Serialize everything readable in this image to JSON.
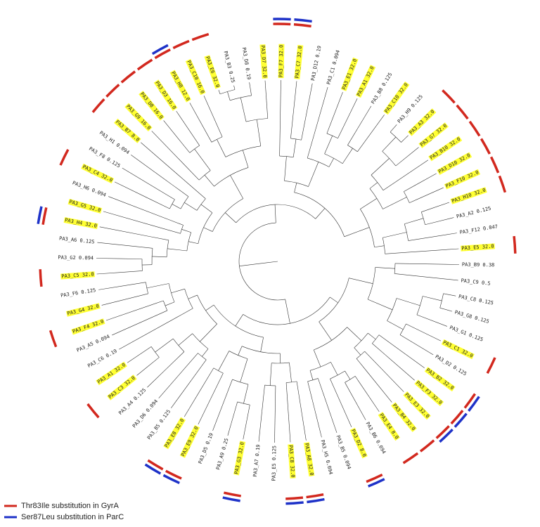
{
  "legend": [
    {
      "label": "Thr83Ile substitution in GyrA",
      "color": "#d2281e"
    },
    {
      "label": "Ser87Leu substitution in ParC",
      "color": "#1e32c8"
    }
  ],
  "leaves": [
    {
      "label": "PA3_B9 0.38",
      "highlight": false,
      "gyrA": false,
      "parC": false
    },
    {
      "label": "PA3_C9 0.5",
      "highlight": false,
      "gyrA": false,
      "parC": false
    },
    {
      "label": "PA3_C8 0.125",
      "highlight": false,
      "gyrA": false,
      "parC": false
    },
    {
      "label": "PA3_G8 0.125",
      "highlight": false,
      "gyrA": false,
      "parC": false
    },
    {
      "label": "PA3_G1 0.125",
      "highlight": false,
      "gyrA": false,
      "parC": false
    },
    {
      "label": "PA3_C1 32.0",
      "highlight": true,
      "gyrA": true,
      "parC": false
    },
    {
      "label": "PA3_D2 0.125",
      "highlight": false,
      "gyrA": false,
      "parC": false
    },
    {
      "label": "PA3_B2 32.0",
      "highlight": true,
      "gyrA": true,
      "parC": true
    },
    {
      "label": "PA3_F3 32.0",
      "highlight": true,
      "gyrA": true,
      "parC": true
    },
    {
      "label": "PA3_E3 32.0",
      "highlight": true,
      "gyrA": true,
      "parC": true
    },
    {
      "label": "PA3_B4 32.0",
      "highlight": true,
      "gyrA": true,
      "parC": false
    },
    {
      "label": "PA3_E4 8.0",
      "highlight": true,
      "gyrA": true,
      "parC": false
    },
    {
      "label": "PA3_B6 0.094",
      "highlight": false,
      "gyrA": false,
      "parC": false
    },
    {
      "label": "PA3_D2 8.0",
      "highlight": true,
      "gyrA": true,
      "parC": true
    },
    {
      "label": "PA3_B5 0.094",
      "highlight": false,
      "gyrA": false,
      "parC": false
    },
    {
      "label": "PA3_H5 0.094",
      "highlight": false,
      "gyrA": false,
      "parC": false
    },
    {
      "label": "PA3_A8 32.0",
      "highlight": true,
      "gyrA": true,
      "parC": true
    },
    {
      "label": "PA3_C8 32.0",
      "highlight": true,
      "gyrA": true,
      "parC": true
    },
    {
      "label": "PA3_E5 0.125",
      "highlight": false,
      "gyrA": false,
      "parC": false
    },
    {
      "label": "PA3_A7 0.19",
      "highlight": false,
      "gyrA": false,
      "parC": false
    },
    {
      "label": "PA3_G3 32.0",
      "highlight": true,
      "gyrA": true,
      "parC": true
    },
    {
      "label": "PA3_A9 0.25",
      "highlight": false,
      "gyrA": false,
      "parC": false
    },
    {
      "label": "PA3_D5 0.19",
      "highlight": false,
      "gyrA": false,
      "parC": false
    },
    {
      "label": "PA3_E9 32.0",
      "highlight": true,
      "gyrA": true,
      "parC": true
    },
    {
      "label": "PA3_E8 32.0",
      "highlight": true,
      "gyrA": true,
      "parC": true
    },
    {
      "label": "PA3_B5 0.125",
      "highlight": false,
      "gyrA": false,
      "parC": false
    },
    {
      "label": "PA3_D6 0.094",
      "highlight": false,
      "gyrA": false,
      "parC": false
    },
    {
      "label": "PA3_A4 0.125",
      "highlight": false,
      "gyrA": false,
      "parC": false
    },
    {
      "label": "PA3_C3 32.0",
      "highlight": true,
      "gyrA": true,
      "parC": false
    },
    {
      "label": "PA3_A1 32.0",
      "highlight": true,
      "gyrA": false,
      "parC": false
    },
    {
      "label": "PA3_C6 0.19",
      "highlight": false,
      "gyrA": false,
      "parC": false
    },
    {
      "label": "PA3_A5 0.094",
      "highlight": false,
      "gyrA": false,
      "parC": false
    },
    {
      "label": "PA3_F4 32.0",
      "highlight": true,
      "gyrA": true,
      "parC": false
    },
    {
      "label": "PA3_G4 32.0",
      "highlight": true,
      "gyrA": false,
      "parC": false
    },
    {
      "label": "PA3_F6 0.125",
      "highlight": false,
      "gyrA": false,
      "parC": false
    },
    {
      "label": "PA3_C5 32.0",
      "highlight": true,
      "gyrA": true,
      "parC": false
    },
    {
      "label": "PA3_G2 0.094",
      "highlight": false,
      "gyrA": false,
      "parC": false
    },
    {
      "label": "PA3_A6 0.125",
      "highlight": false,
      "gyrA": false,
      "parC": false
    },
    {
      "label": "PA3_H4 32.0",
      "highlight": true,
      "gyrA": true,
      "parC": true
    },
    {
      "label": "PA3_G5 32.0",
      "highlight": true,
      "gyrA": false,
      "parC": false
    },
    {
      "label": "PA3_H6 0.094",
      "highlight": false,
      "gyrA": false,
      "parC": false
    },
    {
      "label": "PA3_C4 32.0",
      "highlight": true,
      "gyrA": true,
      "parC": false
    },
    {
      "label": "PA3_F8 0.125",
      "highlight": false,
      "gyrA": false,
      "parC": false
    },
    {
      "label": "PA3_H1 0.094",
      "highlight": false,
      "gyrA": false,
      "parC": false
    },
    {
      "label": "PA3_B7 8.0",
      "highlight": true,
      "gyrA": true,
      "parC": false
    },
    {
      "label": "PA3_G9 16.0",
      "highlight": true,
      "gyrA": true,
      "parC": false
    },
    {
      "label": "PA3_D8 16.0",
      "highlight": true,
      "gyrA": true,
      "parC": false
    },
    {
      "label": "PA3_D3 16.0",
      "highlight": true,
      "gyrA": true,
      "parC": false
    },
    {
      "label": "PA3_H8 12.0",
      "highlight": true,
      "gyrA": true,
      "parC": true
    },
    {
      "label": "PA3_C10 16.0",
      "highlight": true,
      "gyrA": true,
      "parC": false
    },
    {
      "label": "PA3_E6 32.0",
      "highlight": true,
      "gyrA": true,
      "parC": false
    },
    {
      "label": "PA3_B3 0.25",
      "highlight": false,
      "gyrA": false,
      "parC": false
    },
    {
      "label": "PA3_D8 0.19",
      "highlight": false,
      "gyrA": false,
      "parC": false
    },
    {
      "label": "PA3_D7 32.0",
      "highlight": true,
      "gyrA": false,
      "parC": false
    },
    {
      "label": "PA3_F7 32.0",
      "highlight": true,
      "gyrA": true,
      "parC": true
    },
    {
      "label": "PA3_C7 32.0",
      "highlight": true,
      "gyrA": true,
      "parC": true
    },
    {
      "label": "PA3_D12 0.19",
      "highlight": false,
      "gyrA": false,
      "parC": false
    },
    {
      "label": "PA3_C1 0.094",
      "highlight": false,
      "gyrA": false,
      "parC": false
    },
    {
      "label": "PA3_E1 32.0",
      "highlight": true,
      "gyrA": false,
      "parC": false
    },
    {
      "label": "PA3_A1 32.0",
      "highlight": true,
      "gyrA": false,
      "parC": false
    },
    {
      "label": "PA3_B8 0.125",
      "highlight": false,
      "gyrA": false,
      "parC": false
    },
    {
      "label": "PA3_C10 32.0",
      "highlight": true,
      "gyrA": false,
      "parC": false
    },
    {
      "label": "PA3_H9 0.125",
      "highlight": false,
      "gyrA": false,
      "parC": false
    },
    {
      "label": "PA3_A3 32.0",
      "highlight": true,
      "gyrA": true,
      "parC": false
    },
    {
      "label": "PA3_G7 32.0",
      "highlight": true,
      "gyrA": true,
      "parC": false
    },
    {
      "label": "PA3_B10 32.0",
      "highlight": true,
      "gyrA": true,
      "parC": false
    },
    {
      "label": "PA3_D10 32.0",
      "highlight": true,
      "gyrA": true,
      "parC": false
    },
    {
      "label": "PA3_F10 32.0",
      "highlight": true,
      "gyrA": true,
      "parC": false
    },
    {
      "label": "PA3_H10 32.0",
      "highlight": true,
      "gyrA": true,
      "parC": false
    },
    {
      "label": "PA3_A2 0.125",
      "highlight": false,
      "gyrA": false,
      "parC": false
    },
    {
      "label": "PA3_F12 0.047",
      "highlight": false,
      "gyrA": false,
      "parC": false
    },
    {
      "label": "PA3_E5 32.0",
      "highlight": true,
      "gyrA": true,
      "parC": false
    }
  ]
}
